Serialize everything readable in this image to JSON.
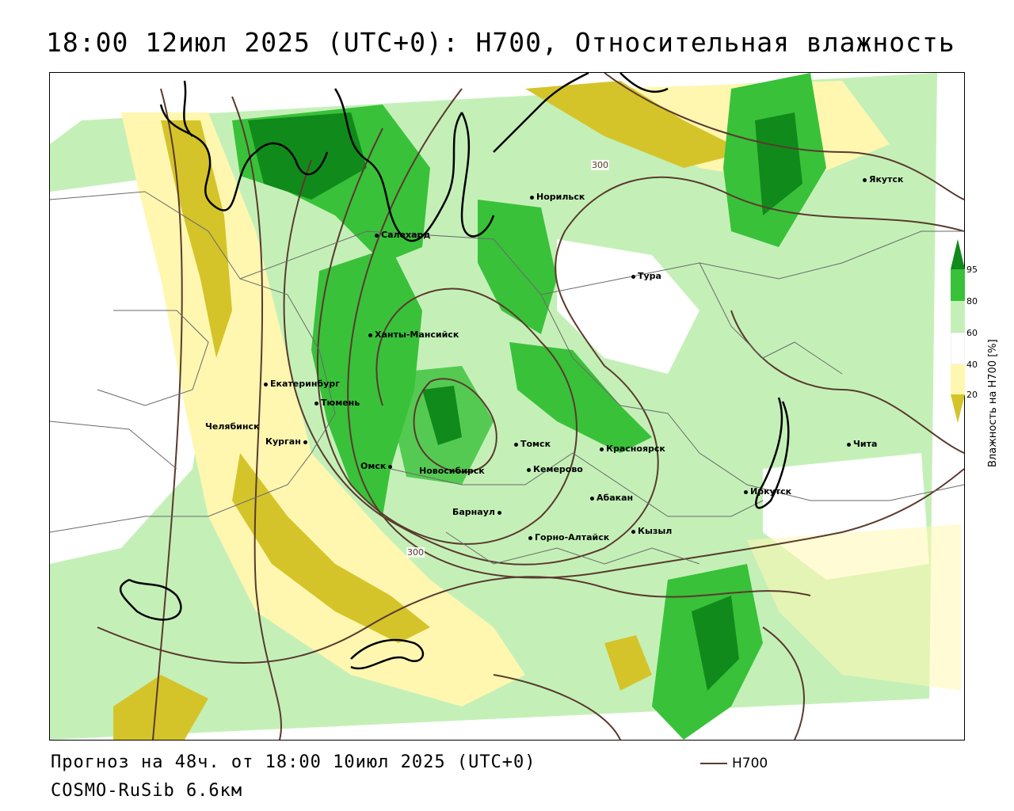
{
  "title": "18:00 12июл 2025 (UTC+0): H700, Относительная влажность",
  "footer": {
    "forecast": "Прогноз на 48ч. от 18:00 10июл 2025 (UTC+0)",
    "model": "COSMO-RuSib 6.6км"
  },
  "series_legend": {
    "label": "H700",
    "color": "#5a3a2e"
  },
  "colorbar": {
    "title": "Влажность на H700 [%]",
    "ticks": [
      "95",
      "80",
      "60",
      "40",
      "20"
    ],
    "colors": {
      "very_dry": "#d4c42a",
      "dry": "#fff7b0",
      "neutral": "#ffffff",
      "moist": "#c4f0b8",
      "humid": "#39c13a",
      "saturated": "#108a1a"
    }
  },
  "contour_labels": [
    "300",
    "300"
  ],
  "cities": [
    {
      "name": "Якутск"
    },
    {
      "name": "Норильск"
    },
    {
      "name": "Салехард"
    },
    {
      "name": "Тура"
    },
    {
      "name": "Ханты-Мансийск"
    },
    {
      "name": "Екатеринбург"
    },
    {
      "name": "Тюмень"
    },
    {
      "name": "Челябинск"
    },
    {
      "name": "Курган"
    },
    {
      "name": "Омск"
    },
    {
      "name": "Новосибирск"
    },
    {
      "name": "Томск"
    },
    {
      "name": "Кемерово"
    },
    {
      "name": "Красноярск"
    },
    {
      "name": "Барнаул"
    },
    {
      "name": "Абакан"
    },
    {
      "name": "Горно-Алтайск"
    },
    {
      "name": "Кызыл"
    },
    {
      "name": "Иркутск"
    },
    {
      "name": "Чита"
    }
  ]
}
